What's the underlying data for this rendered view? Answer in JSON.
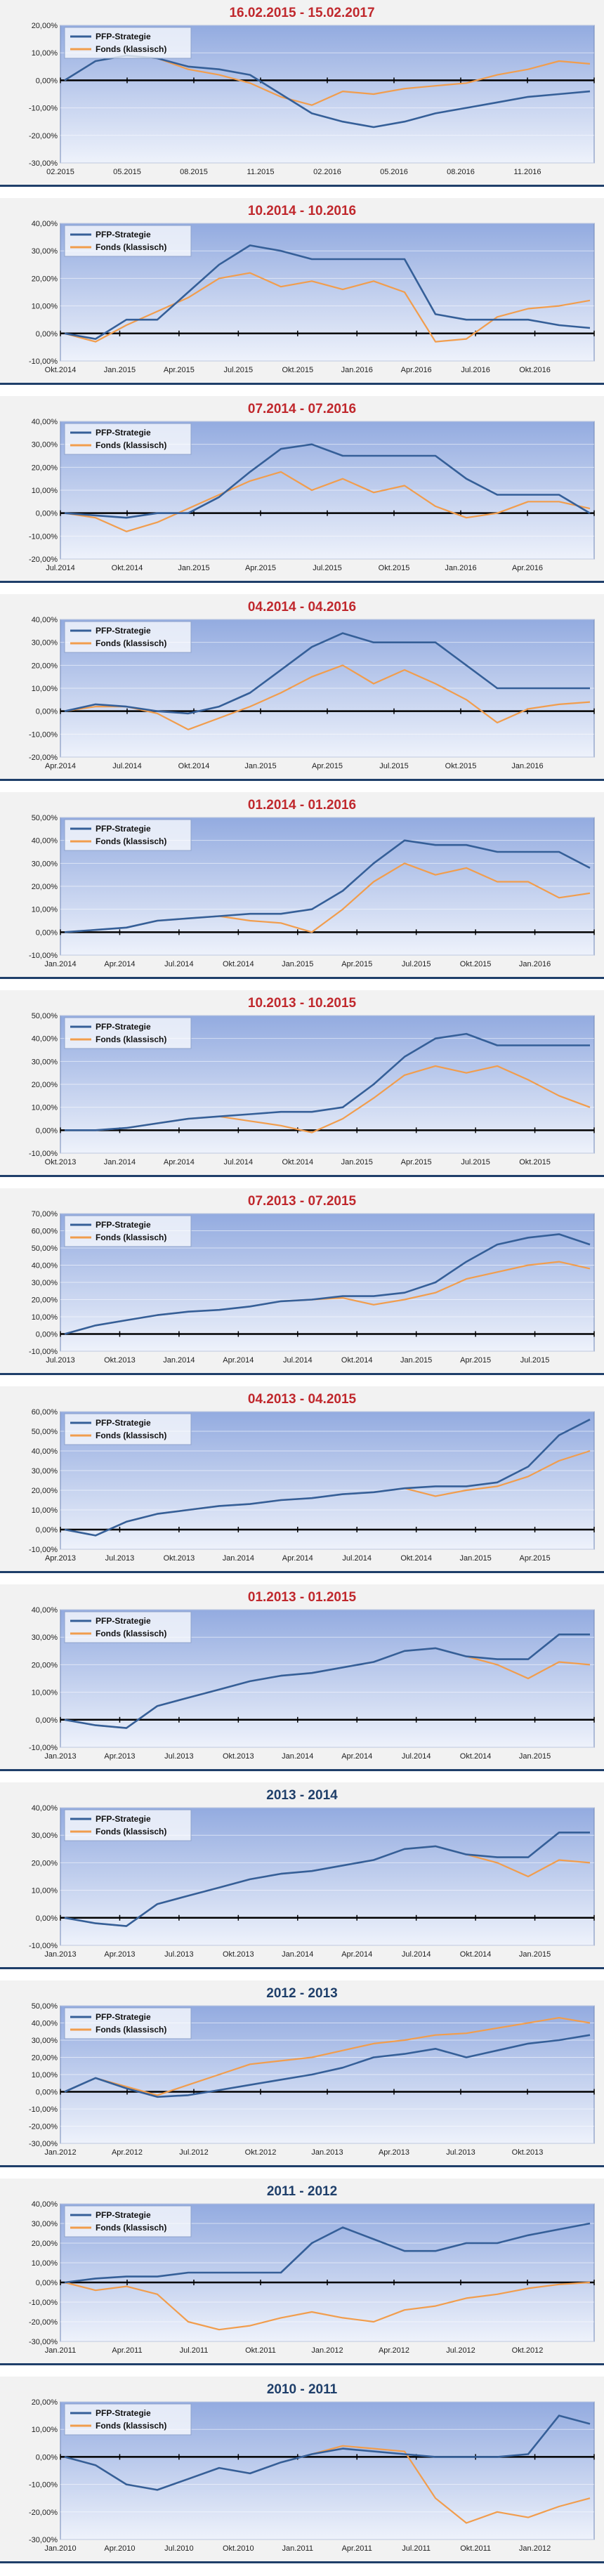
{
  "series_names": [
    "PFP-Strategie",
    "Fonds (klassisch)"
  ],
  "colors": {
    "pfp": "#355f98",
    "fonds": "#f19d4d",
    "title_red": "#c0282d",
    "title_blue": "#1f3f6a"
  },
  "chart_data": [
    {
      "type": "line",
      "title": "16.02.2015 - 15.02.2017",
      "title_color": "red",
      "y_ticks": [
        "20,00%",
        "10,00%",
        "0,00%",
        "-10,00%",
        "-20,00%",
        "-30,00%"
      ],
      "ylim": [
        -30,
        20
      ],
      "x_ticks": [
        "02.2015",
        "05.2015",
        "08.2015",
        "11.2015",
        "02.2016",
        "05.2016",
        "08.2016",
        "11.2016"
      ],
      "legend_position": "top-left",
      "series": [
        {
          "name": "PFP-Strategie",
          "values": [
            0,
            7,
            9,
            8,
            5,
            4,
            2,
            -5,
            -12,
            -15,
            -17,
            -15,
            -12,
            -10,
            -8,
            -6,
            -5,
            -4
          ]
        },
        {
          "name": "Fonds (klassisch)",
          "values": [
            0,
            7,
            9,
            8,
            4,
            2,
            -1,
            -6,
            -9,
            -4,
            -5,
            -3,
            -2,
            -1,
            2,
            4,
            7,
            6
          ]
        }
      ]
    },
    {
      "type": "line",
      "title": "10.2014 - 10.2016",
      "title_color": "red",
      "y_ticks": [
        "40,00%",
        "30,00%",
        "20,00%",
        "10,00%",
        "0,00%",
        "-10,00%"
      ],
      "ylim": [
        -10,
        40
      ],
      "x_ticks": [
        "Okt.2014",
        "Jan.2015",
        "Apr.2015",
        "Jul.2015",
        "Okt.2015",
        "Jan.2016",
        "Apr.2016",
        "Jul.2016",
        "Okt.2016"
      ],
      "legend_position": "top-left",
      "series": [
        {
          "name": "PFP-Strategie",
          "values": [
            0,
            -2,
            5,
            5,
            15,
            25,
            32,
            30,
            27,
            27,
            27,
            27,
            7,
            5,
            5,
            5,
            3,
            2
          ]
        },
        {
          "name": "Fonds (klassisch)",
          "values": [
            0,
            -3,
            3,
            8,
            13,
            20,
            22,
            17,
            19,
            16,
            19,
            15,
            -3,
            -2,
            6,
            9,
            10,
            12
          ]
        }
      ]
    },
    {
      "type": "line",
      "title": "07.2014 - 07.2016",
      "title_color": "red",
      "y_ticks": [
        "40,00%",
        "30,00%",
        "20,00%",
        "10,00%",
        "0,00%",
        "-10,00%",
        "-20,00%"
      ],
      "ylim": [
        -20,
        40
      ],
      "x_ticks": [
        "Jul.2014",
        "Okt.2014",
        "Jan.2015",
        "Apr.2015",
        "Jul.2015",
        "Okt.2015",
        "Jan.2016",
        "Apr.2016"
      ],
      "legend_position": "top-left",
      "series": [
        {
          "name": "PFP-Strategie",
          "values": [
            0,
            -1,
            -2,
            0,
            0,
            7,
            18,
            28,
            30,
            25,
            25,
            25,
            25,
            15,
            8,
            8,
            8,
            0
          ]
        },
        {
          "name": "Fonds (klassisch)",
          "values": [
            0,
            -2,
            -8,
            -4,
            2,
            8,
            14,
            18,
            10,
            15,
            9,
            12,
            3,
            -2,
            0,
            5,
            5,
            2
          ]
        }
      ]
    },
    {
      "type": "line",
      "title": "04.2014 - 04.2016",
      "title_color": "red",
      "y_ticks": [
        "40,00%",
        "30,00%",
        "20,00%",
        "10,00%",
        "0,00%",
        "-10,00%",
        "-20,00%"
      ],
      "ylim": [
        -20,
        40
      ],
      "x_ticks": [
        "Apr.2014",
        "Jul.2014",
        "Okt.2014",
        "Jan.2015",
        "Apr.2015",
        "Jul.2015",
        "Okt.2015",
        "Jan.2016"
      ],
      "legend_position": "top-left",
      "series": [
        {
          "name": "PFP-Strategie",
          "values": [
            0,
            3,
            2,
            0,
            -1,
            2,
            8,
            18,
            28,
            34,
            30,
            30,
            30,
            20,
            10,
            10,
            10,
            10
          ]
        },
        {
          "name": "Fonds (klassisch)",
          "values": [
            0,
            2,
            2,
            -1,
            -8,
            -3,
            2,
            8,
            15,
            20,
            12,
            18,
            12,
            5,
            -5,
            1,
            3,
            4
          ]
        }
      ]
    },
    {
      "type": "line",
      "title": "01.2014 - 01.2016",
      "title_color": "red",
      "y_ticks": [
        "50,00%",
        "40,00%",
        "30,00%",
        "20,00%",
        "10,00%",
        "0,00%",
        "-10,00%"
      ],
      "ylim": [
        -10,
        50
      ],
      "x_ticks": [
        "Jan.2014",
        "Apr.2014",
        "Jul.2014",
        "Okt.2014",
        "Jan.2015",
        "Apr.2015",
        "Jul.2015",
        "Okt.2015",
        "Jan.2016"
      ],
      "legend_position": "top-left",
      "series": [
        {
          "name": "PFP-Strategie",
          "values": [
            0,
            1,
            2,
            5,
            6,
            7,
            8,
            8,
            10,
            18,
            30,
            40,
            38,
            38,
            35,
            35,
            35,
            28
          ]
        },
        {
          "name": "Fonds (klassisch)",
          "values": [
            0,
            1,
            2,
            5,
            6,
            7,
            5,
            4,
            0,
            10,
            22,
            30,
            25,
            28,
            22,
            22,
            15,
            17
          ]
        }
      ]
    },
    {
      "type": "line",
      "title": "10.2013 - 10.2015",
      "title_color": "red",
      "y_ticks": [
        "50,00%",
        "40,00%",
        "30,00%",
        "20,00%",
        "10,00%",
        "0,00%",
        "-10,00%"
      ],
      "ylim": [
        -10,
        50
      ],
      "x_ticks": [
        "Okt.2013",
        "Jan.2014",
        "Apr.2014",
        "Jul.2014",
        "Okt.2014",
        "Jan.2015",
        "Apr.2015",
        "Jul.2015",
        "Okt.2015"
      ],
      "legend_position": "top-left",
      "series": [
        {
          "name": "PFP-Strategie",
          "values": [
            0,
            0,
            1,
            3,
            5,
            6,
            7,
            8,
            8,
            10,
            20,
            32,
            40,
            42,
            37,
            37,
            37,
            37
          ]
        },
        {
          "name": "Fonds (klassisch)",
          "values": [
            0,
            0,
            1,
            3,
            5,
            6,
            4,
            2,
            -1,
            5,
            14,
            24,
            28,
            25,
            28,
            22,
            15,
            10
          ]
        }
      ]
    },
    {
      "type": "line",
      "title": "07.2013 - 07.2015",
      "title_color": "red",
      "y_ticks": [
        "70,00%",
        "60,00%",
        "50,00%",
        "40,00%",
        "30,00%",
        "20,00%",
        "10,00%",
        "0,00%",
        "-10,00%"
      ],
      "ylim": [
        -10,
        70
      ],
      "x_ticks": [
        "Jul.2013",
        "Okt.2013",
        "Jan.2014",
        "Apr.2014",
        "Jul.2014",
        "Okt.2014",
        "Jan.2015",
        "Apr.2015",
        "Jul.2015"
      ],
      "legend_position": "top-left",
      "series": [
        {
          "name": "PFP-Strategie",
          "values": [
            0,
            5,
            8,
            11,
            13,
            14,
            16,
            19,
            20,
            22,
            22,
            24,
            30,
            42,
            52,
            56,
            58,
            52
          ]
        },
        {
          "name": "Fonds (klassisch)",
          "values": [
            0,
            5,
            8,
            11,
            13,
            14,
            16,
            19,
            20,
            21,
            17,
            20,
            24,
            32,
            36,
            40,
            42,
            38
          ]
        }
      ]
    },
    {
      "type": "line",
      "title": "04.2013 - 04.2015",
      "title_color": "red",
      "y_ticks": [
        "60,00%",
        "50,00%",
        "40,00%",
        "30,00%",
        "20,00%",
        "10,00%",
        "0,00%",
        "-10,00%"
      ],
      "ylim": [
        -10,
        60
      ],
      "x_ticks": [
        "Apr.2013",
        "Jul.2013",
        "Okt.2013",
        "Jan.2014",
        "Apr.2014",
        "Jul.2014",
        "Okt.2014",
        "Jan.2015",
        "Apr.2015"
      ],
      "legend_position": "top-left",
      "series": [
        {
          "name": "PFP-Strategie",
          "values": [
            0,
            -3,
            4,
            8,
            10,
            12,
            13,
            15,
            16,
            18,
            19,
            21,
            22,
            22,
            24,
            32,
            48,
            56
          ]
        },
        {
          "name": "Fonds (klassisch)",
          "values": [
            0,
            -3,
            4,
            8,
            10,
            12,
            13,
            15,
            16,
            18,
            19,
            21,
            17,
            20,
            22,
            27,
            35,
            40
          ]
        }
      ]
    },
    {
      "type": "line",
      "title": "01.2013 - 01.2015",
      "title_color": "red",
      "y_ticks": [
        "40,00%",
        "30,00%",
        "20,00%",
        "10,00%",
        "0,00%",
        "-10,00%"
      ],
      "ylim": [
        -10,
        40
      ],
      "x_ticks": [
        "Jan.2013",
        "Apr.2013",
        "Jul.2013",
        "Okt.2013",
        "Jan.2014",
        "Apr.2014",
        "Jul.2014",
        "Okt.2014",
        "Jan.2015"
      ],
      "legend_position": "top-left",
      "series": [
        {
          "name": "PFP-Strategie",
          "values": [
            0,
            -2,
            -3,
            5,
            8,
            11,
            14,
            16,
            17,
            19,
            21,
            25,
            26,
            23,
            22,
            22,
            31,
            31
          ]
        },
        {
          "name": "Fonds (klassisch)",
          "values": [
            0,
            -2,
            -3,
            5,
            8,
            11,
            14,
            16,
            17,
            19,
            21,
            25,
            26,
            23,
            20,
            15,
            21,
            20
          ]
        }
      ]
    },
    {
      "type": "line",
      "title": "2013 - 2014",
      "title_color": "blue",
      "y_ticks": [
        "40,00%",
        "30,00%",
        "20,00%",
        "10,00%",
        "0,00%",
        "-10,00%"
      ],
      "ylim": [
        -10,
        40
      ],
      "x_ticks": [
        "Jan.2013",
        "Apr.2013",
        "Jul.2013",
        "Okt.2013",
        "Jan.2014",
        "Apr.2014",
        "Jul.2014",
        "Okt.2014",
        "Jan.2015"
      ],
      "legend_position": "top-left",
      "series": [
        {
          "name": "PFP-Strategie",
          "values": [
            0,
            -2,
            -3,
            5,
            8,
            11,
            14,
            16,
            17,
            19,
            21,
            25,
            26,
            23,
            22,
            22,
            31,
            31
          ]
        },
        {
          "name": "Fonds (klassisch)",
          "values": [
            0,
            -2,
            -3,
            5,
            8,
            11,
            14,
            16,
            17,
            19,
            21,
            25,
            26,
            23,
            20,
            15,
            21,
            20
          ]
        }
      ]
    },
    {
      "type": "line",
      "title": "2012 - 2013",
      "title_color": "blue",
      "y_ticks": [
        "50,00%",
        "40,00%",
        "30,00%",
        "20,00%",
        "10,00%",
        "0,00%",
        "-10,00%",
        "-20,00%",
        "-30,00%"
      ],
      "ylim": [
        -30,
        50
      ],
      "x_ticks": [
        "Jan.2012",
        "Apr.2012",
        "Jul.2012",
        "Okt.2012",
        "Jan.2013",
        "Apr.2013",
        "Jul.2013",
        "Okt.2013"
      ],
      "legend_position": "top-left",
      "series": [
        {
          "name": "PFP-Strategie",
          "values": [
            0,
            8,
            2,
            -3,
            -2,
            1,
            4,
            7,
            10,
            14,
            20,
            22,
            25,
            20,
            24,
            28,
            30,
            33
          ]
        },
        {
          "name": "Fonds (klassisch)",
          "values": [
            0,
            8,
            3,
            -2,
            4,
            10,
            16,
            18,
            20,
            24,
            28,
            30,
            33,
            34,
            37,
            40,
            43,
            40
          ]
        }
      ]
    },
    {
      "type": "line",
      "title": "2011 - 2012",
      "title_color": "blue",
      "y_ticks": [
        "40,00%",
        "30,00%",
        "20,00%",
        "10,00%",
        "0,00%",
        "-10,00%",
        "-20,00%",
        "-30,00%"
      ],
      "ylim": [
        -30,
        40
      ],
      "x_ticks": [
        "Jan.2011",
        "Apr.2011",
        "Jul.2011",
        "Okt.2011",
        "Jan.2012",
        "Apr.2012",
        "Jul.2012",
        "Okt.2012"
      ],
      "legend_position": "top-left",
      "series": [
        {
          "name": "PFP-Strategie",
          "values": [
            0,
            2,
            3,
            3,
            5,
            5,
            5,
            5,
            20,
            28,
            22,
            16,
            16,
            20,
            20,
            24,
            27,
            30
          ]
        },
        {
          "name": "Fonds (klassisch)",
          "values": [
            0,
            -4,
            -2,
            -6,
            -20,
            -24,
            -22,
            -18,
            -15,
            -18,
            -20,
            -14,
            -12,
            -8,
            -6,
            -3,
            -1,
            0
          ]
        }
      ]
    },
    {
      "type": "line",
      "title": "2010 - 2011",
      "title_color": "blue",
      "y_ticks": [
        "20,00%",
        "10,00%",
        "0,00%",
        "-10,00%",
        "-20,00%",
        "-30,00%"
      ],
      "ylim": [
        -30,
        20
      ],
      "x_ticks": [
        "Jan.2010",
        "Apr.2010",
        "Jul.2010",
        "Okt.2010",
        "Jan.2011",
        "Apr.2011",
        "Jul.2011",
        "Okt.2011",
        "Jan.2012"
      ],
      "legend_position": "top-left",
      "series": [
        {
          "name": "PFP-Strategie",
          "values": [
            0,
            -3,
            -10,
            -12,
            -8,
            -4,
            -6,
            -2,
            1,
            3,
            2,
            1,
            0,
            0,
            0,
            1,
            15,
            12
          ]
        },
        {
          "name": "Fonds (klassisch)",
          "values": [
            0,
            -3,
            -10,
            -12,
            -8,
            -4,
            -6,
            -2,
            1,
            4,
            3,
            2,
            -15,
            -24,
            -20,
            -22,
            -18,
            -15
          ]
        }
      ]
    }
  ]
}
